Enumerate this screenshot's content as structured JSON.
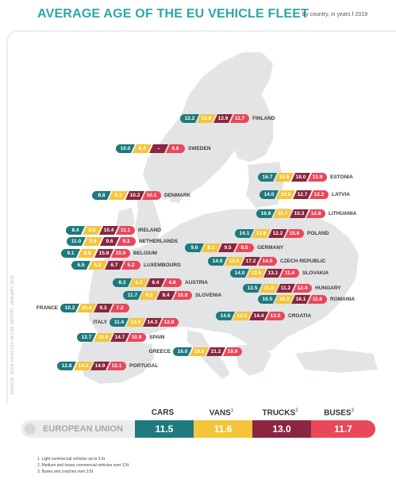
{
  "title": "AVERAGE AGE OF THE EU VEHICLE FLEET",
  "subtitle": "By country, in years",
  "subtitle_sep": "/",
  "subtitle_year": "2019",
  "source": "SOURCE: ACEA VEHICLES IN USE REPORT, JANUARY 2021",
  "colors": {
    "cars": "#1e7a7d",
    "vans": "#f4c53a",
    "trucks": "#8b2640",
    "buses": "#e9485a",
    "map": "#e2e4e5"
  },
  "chart_data": {
    "type": "table",
    "title": "AVERAGE AGE OF THE EU VEHICLE FLEET",
    "subtitle": "By country, in years / 2019",
    "columns": [
      "CARS",
      "VANS",
      "TRUCKS",
      "BUSES"
    ],
    "countries": [
      {
        "name": "FINLAND",
        "values": [
          "12.2",
          "12.8",
          "13.9",
          "11.7"
        ]
      },
      {
        "name": "SWEDEN",
        "values": [
          "10.0",
          "8.4",
          "–",
          "6.6"
        ]
      },
      {
        "name": "ESTONIA",
        "values": [
          "16.7",
          "15.5",
          "18.0",
          "13.9"
        ]
      },
      {
        "name": "LATVIA",
        "values": [
          "14.0",
          "10.9",
          "12.7",
          "12.2"
        ]
      },
      {
        "name": "DENMARK",
        "values": [
          "8.8",
          "8.1",
          "10.2",
          "10.1"
        ]
      },
      {
        "name": "LITHUANIA",
        "values": [
          "16.8",
          "11.7",
          "10.3",
          "12.8"
        ]
      },
      {
        "name": "IRELAND",
        "values": [
          "8.4",
          "8.8",
          "10.4",
          "11.1"
        ]
      },
      {
        "name": "POLAND",
        "values": [
          "14.1",
          "13.6",
          "12.2",
          "15.6"
        ]
      },
      {
        "name": "NETHERLANDS",
        "values": [
          "11.0",
          "9.8",
          "9.6",
          "9.3"
        ]
      },
      {
        "name": "GERMANY",
        "values": [
          "9.6",
          "8.1",
          "9.5",
          "8.5"
        ]
      },
      {
        "name": "BELGIUM",
        "values": [
          "9.1",
          "8.6",
          "15.8",
          "10.9"
        ]
      },
      {
        "name": "LUXEMBOURG",
        "values": [
          "6.5",
          "6.2",
          "6.7",
          "5.2"
        ]
      },
      {
        "name": "CZECH REPUBLIC",
        "values": [
          "14.9",
          "12.9",
          "17.2",
          "14.5"
        ]
      },
      {
        "name": "SLOVAKIA",
        "values": [
          "14.0",
          "13.6",
          "13.1",
          "11.4"
        ]
      },
      {
        "name": "AUSTRIA",
        "values": [
          "8.3",
          "6.2",
          "6.4",
          "4.8"
        ]
      },
      {
        "name": "HUNGARY",
        "values": [
          "13.5",
          "11.8",
          "11.2",
          "12.4"
        ]
      },
      {
        "name": "SLOVENIA",
        "values": [
          "11.7",
          "9.2",
          "9.4",
          "10.8"
        ]
      },
      {
        "name": "ROMANIA",
        "values": [
          "16.5",
          "16.3",
          "16.1",
          "11.6"
        ]
      },
      {
        "name": "FRANCE",
        "values": [
          "10.2",
          "10.4",
          "9.3",
          "7.2"
        ]
      },
      {
        "name": "CROATIA",
        "values": [
          "14.6",
          "12.0",
          "14.4",
          "13.0"
        ]
      },
      {
        "name": "ITALY",
        "values": [
          "11.4",
          "12.6",
          "14.3",
          "12.8"
        ]
      },
      {
        "name": "SPAIN",
        "values": [
          "12.7",
          "13.0",
          "14.7",
          "10.9"
        ]
      },
      {
        "name": "GREECE",
        "values": [
          "16.0",
          "19.5",
          "21.2",
          "19.9"
        ]
      },
      {
        "name": "PORTUGAL",
        "values": [
          "12.8",
          "14.5",
          "14.9",
          "15.1"
        ]
      }
    ],
    "eu": {
      "name": "EUROPEAN UNION",
      "values": [
        "11.5",
        "11.6",
        "13.0",
        "11.7"
      ]
    }
  },
  "headers": [
    {
      "label": "CARS",
      "sup": ""
    },
    {
      "label": "VANS",
      "sup": "1"
    },
    {
      "label": "TRUCKS",
      "sup": "2"
    },
    {
      "label": "BUSES",
      "sup": "3"
    }
  ],
  "footnotes": [
    "1. Light commercial vehicles up to 3.5t",
    "2. Medium and heavy commercial vehicles over 3.5t",
    "3. Buses and coaches over 3.5t"
  ]
}
